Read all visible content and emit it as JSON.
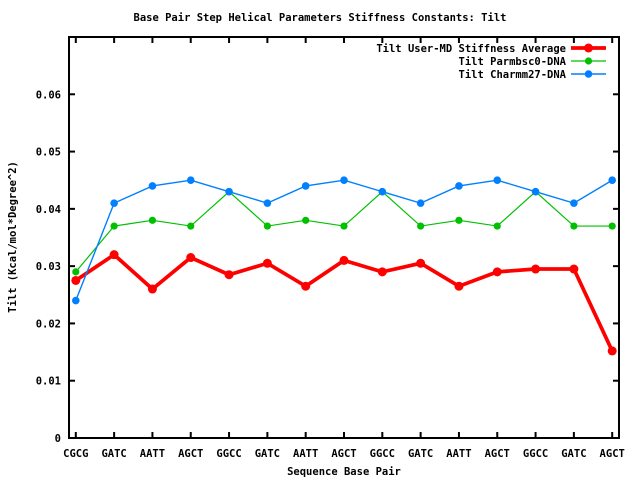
{
  "chart_data": {
    "type": "line",
    "title": "Base Pair Step Helical Parameters Stiffness Constants: Tilt",
    "xlabel": "Sequence Base Pair",
    "ylabel": "Tilt (Kcal/mol*Degree^2)",
    "categories": [
      "CGCG",
      "GATC",
      "AATT",
      "AGCT",
      "GGCC",
      "GATC",
      "AATT",
      "AGCT",
      "GGCC",
      "GATC",
      "AATT",
      "AGCT",
      "GGCC",
      "GATC",
      "AGCT"
    ],
    "series": [
      {
        "id": "user-md",
        "name": "Tilt User-MD Stiffness Average",
        "color": "#ff0000",
        "line_width": 3.7,
        "point_radius": 4.5,
        "values": [
          0.0275,
          0.032,
          0.026,
          0.0315,
          0.0285,
          0.0305,
          0.0265,
          0.031,
          0.029,
          0.0305,
          0.0265,
          0.029,
          0.0295,
          0.0295,
          0.0152
        ]
      },
      {
        "id": "parmbsc0",
        "name": "Tilt Parmbsc0-DNA",
        "color": "#00c000",
        "line_width": 1.2,
        "point_radius": 3.6,
        "values": [
          0.029,
          0.037,
          0.038,
          0.037,
          0.043,
          0.037,
          0.038,
          0.037,
          0.043,
          0.037,
          0.038,
          0.037,
          0.043,
          0.037,
          0.037
        ]
      },
      {
        "id": "charmm27",
        "name": "Tilt Charmm27-DNA",
        "color": "#0080ff",
        "line_width": 1.4,
        "point_radius": 3.8,
        "values": [
          0.024,
          0.041,
          0.044,
          0.045,
          0.043,
          0.041,
          0.044,
          0.045,
          0.043,
          0.041,
          0.044,
          0.045,
          0.043,
          0.041,
          0.045
        ]
      }
    ],
    "ylim": [
      0,
      0.07
    ],
    "yticks": [
      {
        "v": 0,
        "label": "0"
      },
      {
        "v": 0.01,
        "label": "0.01"
      },
      {
        "v": 0.02,
        "label": "0.02"
      },
      {
        "v": 0.03,
        "label": "0.03"
      },
      {
        "v": 0.04,
        "label": "0.04"
      },
      {
        "v": 0.05,
        "label": "0.05"
      },
      {
        "v": 0.06,
        "label": "0.06"
      }
    ],
    "grid": false,
    "legend_position": "top-right-inside",
    "axis_color": "#000000",
    "background_color": "#ffffff"
  }
}
